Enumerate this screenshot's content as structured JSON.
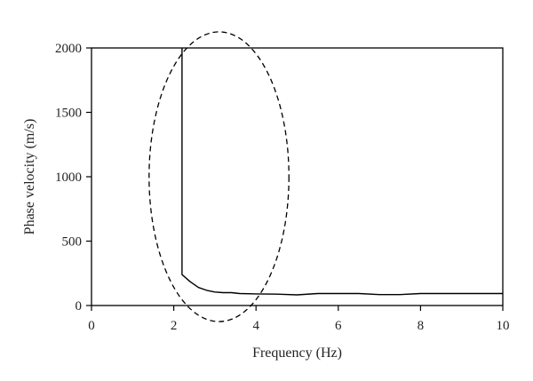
{
  "chart_data": {
    "type": "line",
    "xlabel": "Frequency (Hz)",
    "ylabel": "Phase velocity (m/s)",
    "xlim": [
      0,
      10
    ],
    "ylim": [
      0,
      2000
    ],
    "xticks": [
      0,
      2,
      4,
      6,
      8,
      10
    ],
    "yticks": [
      0,
      500,
      1000,
      1500,
      2000
    ],
    "xtick_labels": [
      "0",
      "2",
      "4",
      "6",
      "8",
      "10"
    ],
    "ytick_labels": [
      "0",
      "500",
      "1000",
      "1500",
      "2000"
    ],
    "grid": false,
    "legend": "none",
    "series": [
      {
        "color": "#000000",
        "x": [
          2.2,
          2.2,
          2.4,
          2.6,
          2.8,
          3.0,
          3.2,
          3.4,
          3.6,
          4.0,
          4.5,
          5.0,
          5.5,
          6.0,
          6.5,
          7.0,
          7.5,
          8.0,
          8.5,
          9.0,
          9.5,
          10.0
        ],
        "y": [
          2000,
          240,
          185,
          140,
          118,
          105,
          100,
          100,
          93,
          90,
          88,
          83,
          93,
          93,
          93,
          85,
          85,
          93,
          93,
          93,
          93,
          93
        ]
      }
    ],
    "annotations": [
      {
        "shape": "dashed-ellipse",
        "cx": 3.1,
        "cy": 1000,
        "rx": 1.7,
        "ry": 2250
      }
    ]
  }
}
